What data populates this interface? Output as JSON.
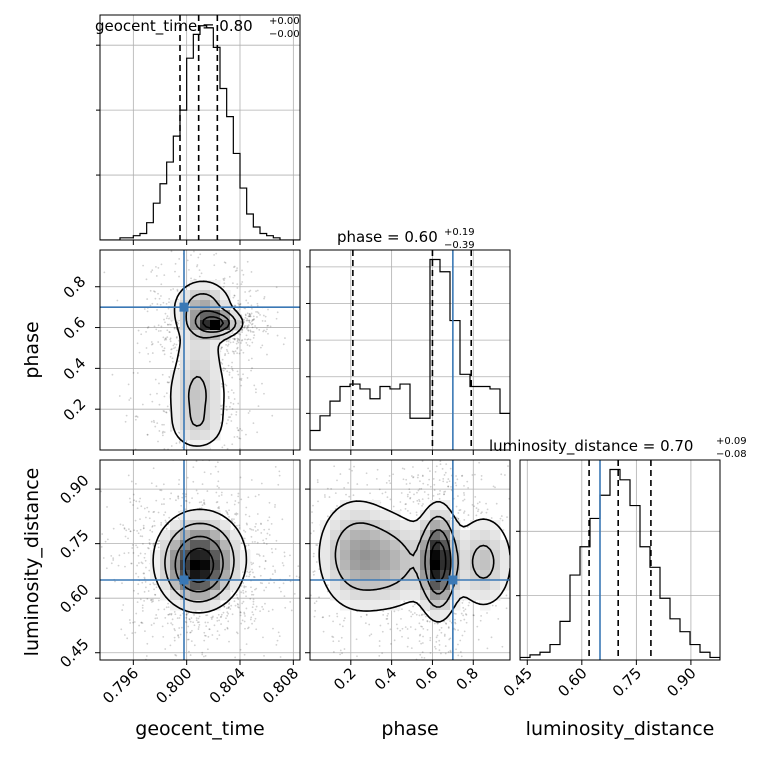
{
  "chart_data": {
    "type": "corner",
    "parameters": [
      "geocent_time",
      "phase",
      "luminosity_distance"
    ],
    "truths": {
      "geocent_time": 0.7998,
      "phase": 0.7,
      "luminosity_distance": 0.65
    },
    "truth_color": "#3a78b5",
    "titles": {
      "geocent_time": {
        "name": "geocent_time",
        "value": "0.80",
        "plus": "+0.00",
        "minus": "−0.00"
      },
      "phase": {
        "name": "phase",
        "value": "0.60",
        "plus": "+0.19",
        "minus": "−0.39"
      },
      "luminosity_distance": {
        "name": "luminosity_distance",
        "value": "0.70",
        "plus": "+0.09",
        "minus": "−0.08"
      }
    },
    "axis_labels": {
      "x": [
        "geocent_time",
        "phase",
        "luminosity_distance"
      ],
      "y": [
        "phase",
        "luminosity_distance"
      ]
    },
    "ranges": {
      "geocent_time": [
        0.7935,
        0.8085
      ],
      "phase": [
        0.0,
        0.98
      ],
      "luminosity_distance": [
        0.43,
        0.98
      ]
    },
    "ticks": {
      "geocent_time": [
        0.796,
        0.8,
        0.804,
        0.808
      ],
      "phase": [
        0.2,
        0.4,
        0.6,
        0.8
      ],
      "luminosity_distance": [
        0.45,
        0.6,
        0.75,
        0.9
      ]
    },
    "tick_labels": {
      "geocent_time": [
        "0.796",
        "0.800",
        "0.804",
        "0.808"
      ],
      "phase": [
        "0.2",
        "0.4",
        "0.6",
        "0.8"
      ],
      "luminosity_distance": [
        "0.45",
        "0.60",
        "0.75",
        "0.90"
      ]
    },
    "quantile_lines": {
      "geocent_time": [
        0.7995,
        0.8009,
        0.8023
      ],
      "phase": [
        0.21,
        0.6,
        0.79
      ],
      "luminosity_distance": [
        0.62,
        0.7,
        0.79
      ]
    },
    "histograms": {
      "geocent_time": {
        "bin_edges": [
          0.7935,
          0.794,
          0.7945,
          0.795,
          0.7955,
          0.796,
          0.7965,
          0.797,
          0.7975,
          0.798,
          0.7985,
          0.799,
          0.7995,
          0.8,
          0.8005,
          0.801,
          0.8015,
          0.802,
          0.8025,
          0.803,
          0.8035,
          0.804,
          0.8045,
          0.805,
          0.8055,
          0.806,
          0.8065,
          0.807,
          0.8075,
          0.808,
          0.8085
        ],
        "counts": [
          0,
          0,
          0,
          1,
          1,
          2,
          3,
          8,
          17,
          26,
          36,
          48,
          60,
          84,
          95,
          99,
          98,
          89,
          70,
          57,
          40,
          24,
          12,
          6,
          3,
          2,
          1,
          0,
          0,
          0
        ],
        "y_ticks": [
          0,
          30,
          60,
          90
        ]
      },
      "phase": {
        "bin_edges": [
          0.0,
          0.049,
          0.098,
          0.147,
          0.196,
          0.245,
          0.294,
          0.343,
          0.392,
          0.441,
          0.49,
          0.539,
          0.588,
          0.637,
          0.686,
          0.735,
          0.784,
          0.833,
          0.882,
          0.931,
          0.98
        ],
        "counts": [
          8,
          14,
          20,
          26,
          27,
          25,
          21,
          26,
          25,
          27,
          13,
          13,
          78,
          73,
          53,
          31,
          26,
          26,
          25,
          15
        ],
        "y_ticks": [
          0,
          15,
          30,
          45,
          60,
          75
        ]
      },
      "luminosity_distance": {
        "bin_edges": [
          0.43,
          0.4575,
          0.485,
          0.5125,
          0.54,
          0.5675,
          0.595,
          0.6225,
          0.65,
          0.6775,
          0.705,
          0.7325,
          0.76,
          0.7875,
          0.815,
          0.8425,
          0.87,
          0.8975,
          0.925,
          0.9525,
          0.98
        ],
        "counts": [
          1,
          2,
          3,
          6,
          15,
          33,
          44,
          55,
          64,
          74,
          70,
          60,
          44,
          36,
          24,
          16,
          11,
          6,
          3,
          1
        ],
        "y_ticks": [
          0,
          25,
          50
        ]
      }
    },
    "density_2d": [
      {
        "x": "geocent_time",
        "y": "phase",
        "peaks": [
          {
            "cx": 0.8022,
            "cy": 0.62,
            "sx": 0.001,
            "sy": 0.035,
            "w": 1.0
          },
          {
            "cx": 0.8012,
            "cy": 0.7,
            "sx": 0.0013,
            "sy": 0.08,
            "w": 0.55
          },
          {
            "cx": 0.8008,
            "cy": 0.27,
            "sx": 0.0014,
            "sy": 0.12,
            "w": 0.42
          },
          {
            "cx": 0.8009,
            "cy": 0.5,
            "sx": 0.0012,
            "sy": 0.1,
            "w": 0.22
          },
          {
            "cx": 0.8008,
            "cy": 0.1,
            "sx": 0.0013,
            "sy": 0.07,
            "w": 0.22
          }
        ]
      },
      {
        "x": "geocent_time",
        "y": "luminosity_distance",
        "peaks": [
          {
            "cx": 0.801,
            "cy": 0.71,
            "sx": 0.0018,
            "sy": 0.07,
            "w": 1.0
          },
          {
            "cx": 0.8008,
            "cy": 0.66,
            "sx": 0.0013,
            "sy": 0.05,
            "w": 0.45
          }
        ]
      },
      {
        "x": "phase",
        "y": "luminosity_distance",
        "peaks": [
          {
            "cx": 0.63,
            "cy": 0.7,
            "sx": 0.05,
            "sy": 0.08,
            "w": 1.0
          },
          {
            "cx": 0.22,
            "cy": 0.72,
            "sx": 0.11,
            "sy": 0.09,
            "w": 0.45
          },
          {
            "cx": 0.42,
            "cy": 0.7,
            "sx": 0.12,
            "sy": 0.08,
            "w": 0.35
          },
          {
            "cx": 0.85,
            "cy": 0.7,
            "sx": 0.09,
            "sy": 0.08,
            "w": 0.38
          }
        ]
      }
    ],
    "contour_levels": [
      0.12,
      0.3,
      0.55,
      0.8
    ],
    "grid": true
  }
}
